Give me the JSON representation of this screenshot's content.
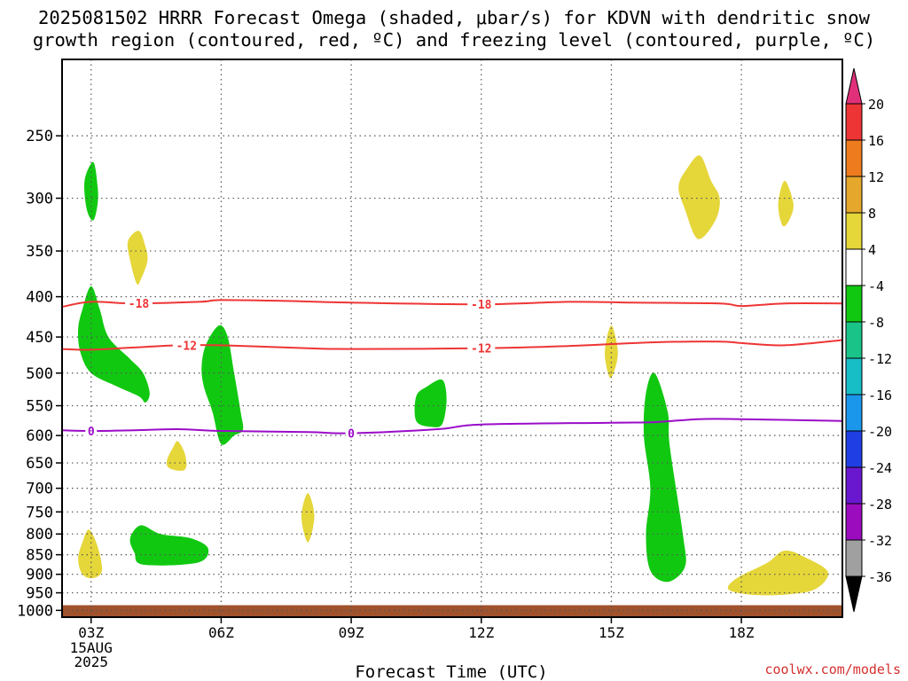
{
  "title_line1": "2025081502 HRRR Forecast Omega (shaded, μbar/s) for KDVN with dendritic snow",
  "title_line2": "growth region (contoured, red, ºC) and freezing level (contoured, purple, ºC)",
  "credit": "coolwx.com/models",
  "chart_data": {
    "type": "cross-section",
    "xlabel": "Forecast Time (UTC)",
    "ylabel": "",
    "x_axis": {
      "unit": "forecast hour (UTC)",
      "range": [
        2.33,
        20.33
      ],
      "ticks": [
        {
          "hour": 3,
          "label": "03Z",
          "sub": [
            "15AUG",
            "2025"
          ]
        },
        {
          "hour": 6,
          "label": "06Z"
        },
        {
          "hour": 9,
          "label": "09Z"
        },
        {
          "hour": 12,
          "label": "12Z"
        },
        {
          "hour": 15,
          "label": "15Z"
        },
        {
          "hour": 18,
          "label": "18Z"
        }
      ]
    },
    "y_axis": {
      "unit": "hPa",
      "scale": "log",
      "inverted": true,
      "range": [
        1020,
        200
      ],
      "ticks": [
        250,
        300,
        350,
        400,
        450,
        500,
        550,
        600,
        650,
        700,
        750,
        800,
        850,
        900,
        950,
        1000
      ]
    },
    "grid": true,
    "surface_fill_hPa": 985,
    "colorbar": {
      "labels": [
        "20",
        "16",
        "12",
        "8",
        "4",
        "-4",
        "-8",
        "-12",
        "-16",
        "-20",
        "-24",
        "-28",
        "-32",
        "-36"
      ],
      "colors": [
        "#e0307a",
        "#ee3535",
        "#ee7c1e",
        "#e5a72c",
        "#e5d63a",
        "#ffffff",
        "#11c811",
        "#1ac489",
        "#18bec6",
        "#1a97ea",
        "#1f3fe4",
        "#6a18d0",
        "#9a0cbe",
        "#a0a0a0",
        "#000000"
      ]
    },
    "contours": [
      {
        "name": "-18",
        "color": "#ee3535",
        "points": [
          [
            2.33,
            412
          ],
          [
            3.0,
            406
          ],
          [
            4.0,
            408
          ],
          [
            5.5,
            406
          ],
          [
            6.0,
            404
          ],
          [
            7.5,
            405
          ],
          [
            9.0,
            407
          ],
          [
            12.0,
            409
          ],
          [
            14.0,
            406
          ],
          [
            15.5,
            407
          ],
          [
            17.5,
            408
          ],
          [
            18.0,
            411
          ],
          [
            19.0,
            408
          ],
          [
            20.33,
            408
          ]
        ],
        "labels": [
          [
            4.1,
            408
          ],
          [
            12.0,
            409
          ]
        ]
      },
      {
        "name": "-12",
        "color": "#ee3535",
        "points": [
          [
            2.33,
            466
          ],
          [
            3.0,
            467
          ],
          [
            4.0,
            464
          ],
          [
            5.0,
            461
          ],
          [
            6.0,
            461
          ],
          [
            8.0,
            465
          ],
          [
            9.0,
            466
          ],
          [
            12.0,
            465
          ],
          [
            14.0,
            462
          ],
          [
            16.0,
            457
          ],
          [
            17.5,
            456
          ],
          [
            18.0,
            458
          ],
          [
            19.0,
            461
          ],
          [
            20.33,
            454
          ]
        ],
        "labels": [
          [
            5.2,
            461
          ],
          [
            12.0,
            465
          ]
        ]
      },
      {
        "name": "0",
        "color": "#9a0cc8",
        "points": [
          [
            2.33,
            591
          ],
          [
            3.0,
            592
          ],
          [
            4.0,
            591
          ],
          [
            5.0,
            589
          ],
          [
            6.0,
            592
          ],
          [
            8.0,
            594
          ],
          [
            9.0,
            596
          ],
          [
            11.0,
            589
          ],
          [
            12.0,
            581
          ],
          [
            15.0,
            578
          ],
          [
            16.0,
            577
          ],
          [
            17.0,
            572
          ],
          [
            18.0,
            572
          ],
          [
            20.33,
            575
          ]
        ],
        "labels": [
          [
            3.0,
            592
          ],
          [
            9.0,
            596
          ]
        ]
      }
    ],
    "shaded_regions": [
      {
        "class": "-4 to -8",
        "color": "#11c811",
        "pts": [
          [
            3.05,
            270
          ],
          [
            3.15,
            290
          ],
          [
            3.15,
            305
          ],
          [
            3.05,
            320
          ],
          [
            2.9,
            310
          ],
          [
            2.85,
            285
          ]
        ]
      },
      {
        "class": "4 to 8",
        "color": "#e5d63a",
        "pts": [
          [
            4.1,
            330
          ],
          [
            4.25,
            345
          ],
          [
            4.3,
            360
          ],
          [
            4.15,
            380
          ],
          [
            4.05,
            385
          ],
          [
            3.9,
            360
          ],
          [
            3.85,
            340
          ]
        ]
      },
      {
        "class": "-4 to -8",
        "color": "#11c811",
        "pts": [
          [
            3.0,
            388
          ],
          [
            3.2,
            415
          ],
          [
            3.4,
            450
          ],
          [
            3.9,
            480
          ],
          [
            4.2,
            500
          ],
          [
            4.35,
            530
          ],
          [
            4.25,
            545
          ],
          [
            4.1,
            535
          ],
          [
            3.6,
            520
          ],
          [
            3.0,
            500
          ],
          [
            2.75,
            470
          ],
          [
            2.7,
            440
          ],
          [
            2.8,
            415
          ]
        ]
      },
      {
        "class": "-4 to -8",
        "color": "#11c811",
        "pts": [
          [
            5.95,
            435
          ],
          [
            6.15,
            450
          ],
          [
            6.3,
            500
          ],
          [
            6.45,
            560
          ],
          [
            6.5,
            590
          ],
          [
            6.3,
            600
          ],
          [
            6.0,
            615
          ],
          [
            5.8,
            560
          ],
          [
            5.6,
            520
          ],
          [
            5.55,
            490
          ],
          [
            5.65,
            460
          ]
        ]
      },
      {
        "class": "4 to 8",
        "color": "#e5d63a",
        "pts": [
          [
            5.0,
            610
          ],
          [
            5.15,
            630
          ],
          [
            5.2,
            655
          ],
          [
            5.1,
            665
          ],
          [
            4.8,
            660
          ],
          [
            4.75,
            645
          ],
          [
            4.9,
            620
          ]
        ]
      },
      {
        "class": "-4 to -8",
        "color": "#11c811",
        "pts": [
          [
            10.75,
            520
          ],
          [
            11.1,
            510
          ],
          [
            11.2,
            540
          ],
          [
            11.1,
            580
          ],
          [
            10.85,
            585
          ],
          [
            10.5,
            575
          ],
          [
            10.5,
            535
          ]
        ]
      },
      {
        "class": "4 to 8",
        "color": "#e5d63a",
        "pts": [
          [
            8.0,
            710
          ],
          [
            8.15,
            760
          ],
          [
            8.0,
            820
          ],
          [
            7.85,
            760
          ]
        ]
      },
      {
        "class": "4 to 8",
        "color": "#e5d63a",
        "pts": [
          [
            2.95,
            790
          ],
          [
            3.15,
            830
          ],
          [
            3.25,
            890
          ],
          [
            3.05,
            910
          ],
          [
            2.8,
            900
          ],
          [
            2.7,
            860
          ],
          [
            2.8,
            820
          ]
        ]
      },
      {
        "class": "-4 to -8",
        "color": "#11c811",
        "pts": [
          [
            4.15,
            780
          ],
          [
            4.6,
            800
          ],
          [
            5.3,
            810
          ],
          [
            5.7,
            835
          ],
          [
            5.45,
            870
          ],
          [
            4.2,
            875
          ],
          [
            4.0,
            845
          ],
          [
            3.9,
            810
          ]
        ]
      },
      {
        "class": "4 to 8",
        "color": "#e5d63a",
        "pts": [
          [
            15.0,
            435
          ],
          [
            15.15,
            470
          ],
          [
            15.05,
            500
          ],
          [
            14.95,
            505
          ],
          [
            14.85,
            470
          ]
        ]
      },
      {
        "class": "-4 to -8",
        "color": "#11c811",
        "pts": [
          [
            16.0,
            500
          ],
          [
            16.3,
            560
          ],
          [
            16.35,
            620
          ],
          [
            16.65,
            800
          ],
          [
            16.7,
            880
          ],
          [
            16.3,
            920
          ],
          [
            15.9,
            890
          ],
          [
            15.8,
            800
          ],
          [
            15.9,
            700
          ],
          [
            15.75,
            600
          ],
          [
            15.8,
            530
          ]
        ]
      },
      {
        "class": "4 to 8",
        "color": "#e5d63a",
        "pts": [
          [
            17.05,
            265
          ],
          [
            17.3,
            285
          ],
          [
            17.5,
            300
          ],
          [
            17.4,
            320
          ],
          [
            17.0,
            338
          ],
          [
            16.7,
            310
          ],
          [
            16.55,
            290
          ],
          [
            16.75,
            275
          ]
        ]
      },
      {
        "class": "4 to 8",
        "color": "#e5d63a",
        "pts": [
          [
            19.0,
            285
          ],
          [
            19.2,
            305
          ],
          [
            19.1,
            320
          ],
          [
            18.95,
            325
          ],
          [
            18.85,
            305
          ]
        ]
      },
      {
        "class": "4 to 8",
        "color": "#e5d63a",
        "pts": [
          [
            18.6,
            870
          ],
          [
            19.0,
            840
          ],
          [
            19.5,
            858
          ],
          [
            20.0,
            895
          ],
          [
            19.7,
            940
          ],
          [
            19.0,
            955
          ],
          [
            18.2,
            955
          ],
          [
            17.7,
            940
          ],
          [
            17.9,
            910
          ]
        ]
      }
    ]
  }
}
